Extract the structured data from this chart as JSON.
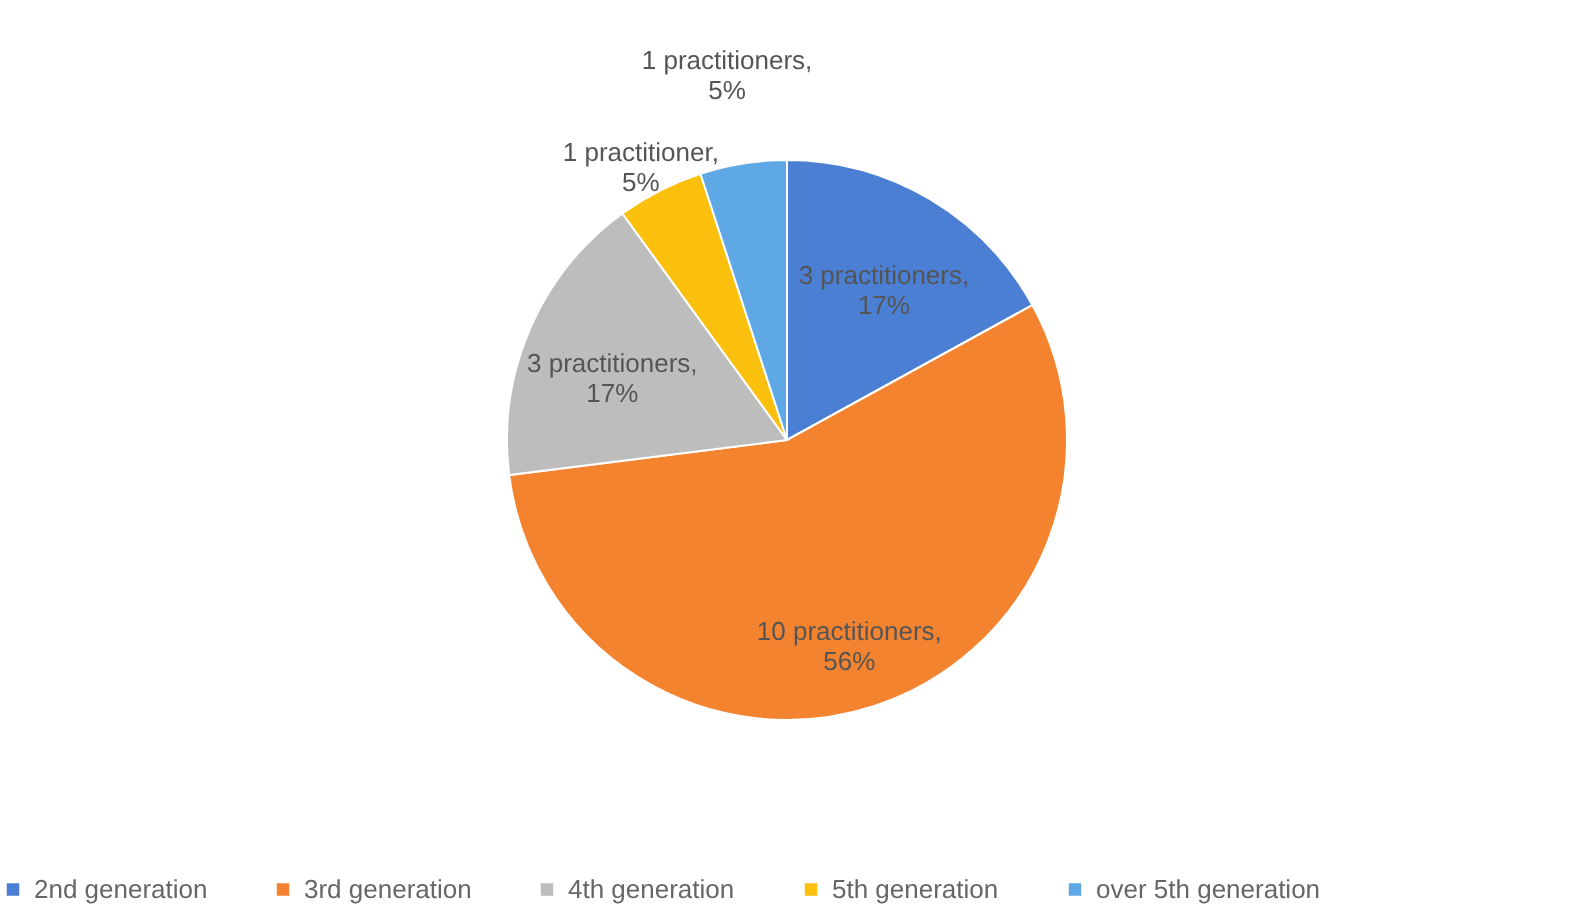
{
  "chart_data": {
    "type": "pie",
    "categories": [
      "2nd generation",
      "3rd generation",
      "4th generation",
      "5th generation",
      "over 5th generation"
    ],
    "values": [
      17,
      56,
      17,
      5,
      5
    ],
    "colors": [
      "#4a7fd4",
      "#f4832f",
      "#bdbdbd",
      "#fbbf0e",
      "#5fa8e6"
    ],
    "value_labels": [
      "3 practitioners,\n17%",
      "10 practitioners,\n56%",
      "3 practitioners,\n17%",
      "1 practitioner,\n5%",
      "1 practitioners,\n5%"
    ],
    "legend": "bottom"
  }
}
